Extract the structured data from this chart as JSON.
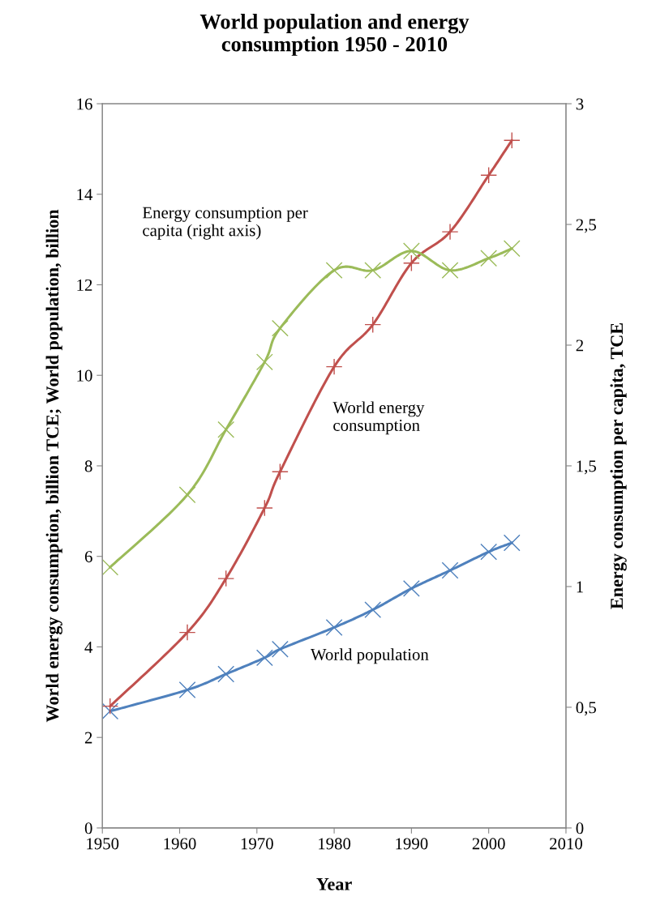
{
  "chart_data": {
    "type": "line",
    "title": "World population and energy\nconsumption 1950 - 2010",
    "xlabel": "Year",
    "ylabel": "World energy consumption, billion TCE; World population, billion",
    "y2label": "Energy consumption per capita, TCE",
    "xlim": [
      1950,
      2010
    ],
    "xticks": [
      1950,
      1960,
      1970,
      1980,
      1990,
      2000,
      2010
    ],
    "ylim": [
      0,
      16
    ],
    "yticks": [
      0,
      2,
      4,
      6,
      8,
      10,
      12,
      14,
      16
    ],
    "y2lim": [
      0,
      3
    ],
    "y2ticks": [
      0,
      {
        "value": 0.5,
        "label": "0,5"
      },
      1,
      {
        "value": 1.5,
        "label": "1,5"
      },
      2,
      {
        "value": 2.5,
        "label": "2,5"
      },
      3
    ],
    "legend": false,
    "grid": false,
    "series": [
      {
        "name": "World population",
        "color": "#4f81bd",
        "marker": "cross",
        "x": [
          1951,
          1961,
          1966,
          1971,
          1973,
          1980,
          1985,
          1990,
          1995,
          2000,
          2003
        ],
        "values": [
          2.58,
          3.05,
          3.4,
          3.76,
          3.95,
          4.43,
          4.82,
          5.29,
          5.69,
          6.1,
          6.3
        ]
      },
      {
        "name": "World energy\nconsumption",
        "color": "#c0504d",
        "marker": "plus",
        "x": [
          1951,
          1961,
          1966,
          1971,
          1973,
          1980,
          1985,
          1990,
          1995,
          2000,
          2003
        ],
        "values": [
          2.69,
          4.32,
          5.51,
          7.07,
          7.87,
          10.19,
          11.12,
          12.48,
          13.17,
          14.42,
          15.19
        ]
      },
      {
        "name": "Energy consumption per\ncapita (right axis)",
        "color": "#9bbb59",
        "marker": "cross",
        "axis": "y2",
        "x": [
          1951,
          1961,
          1966,
          1971,
          1973,
          1980,
          1985,
          1990,
          1995,
          2000,
          2003
        ],
        "values": [
          1.08,
          1.38,
          1.65,
          1.93,
          2.07,
          2.31,
          2.31,
          2.39,
          2.31,
          2.36,
          2.4
        ]
      }
    ]
  }
}
